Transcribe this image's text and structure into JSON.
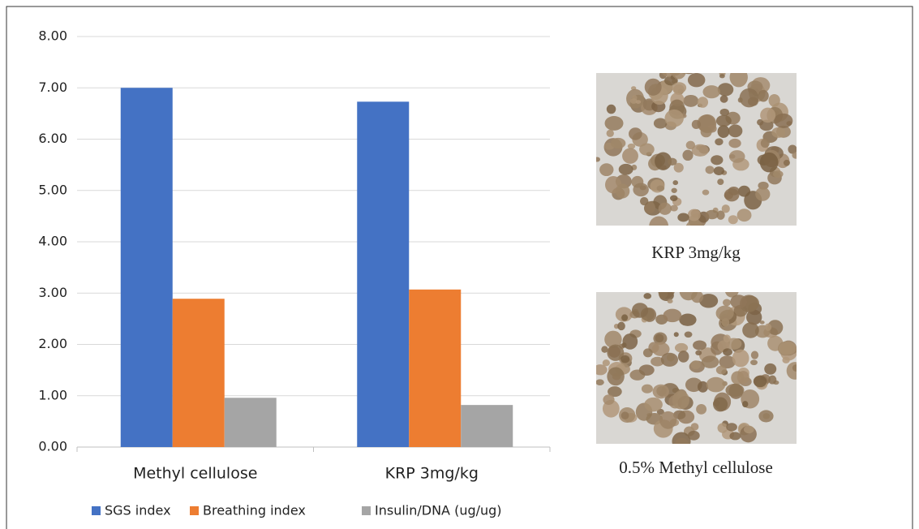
{
  "chart_data": {
    "type": "bar",
    "categories": [
      "Methyl cellulose",
      "KRP 3mg/kg"
    ],
    "series": [
      {
        "name": "SGS index",
        "color": "#4472c4",
        "values": [
          7.0,
          6.73
        ]
      },
      {
        "name": "Breathing index",
        "color": "#ed7d31",
        "values": [
          2.89,
          3.07
        ]
      },
      {
        "name": "Insulin/DNA (ug/ug)",
        "color": "#a5a5a5",
        "values": [
          0.96,
          0.82
        ]
      }
    ],
    "ylim": [
      0,
      8
    ],
    "yticks": [
      {
        "value": 0,
        "label": "0.00"
      },
      {
        "value": 1,
        "label": "1.00"
      },
      {
        "value": 2,
        "label": "2.00"
      },
      {
        "value": 3,
        "label": "3.00"
      },
      {
        "value": 4,
        "label": "4.00"
      },
      {
        "value": 5,
        "label": "5.00"
      },
      {
        "value": 6,
        "label": "6.00"
      },
      {
        "value": 7,
        "label": "7.00"
      },
      {
        "value": 8,
        "label": "8.00"
      }
    ],
    "grid": true,
    "legend": "bottom"
  },
  "images": [
    {
      "caption": "KRP 3mg/kg"
    },
    {
      "caption": "0.5% Methyl cellulose"
    }
  ]
}
